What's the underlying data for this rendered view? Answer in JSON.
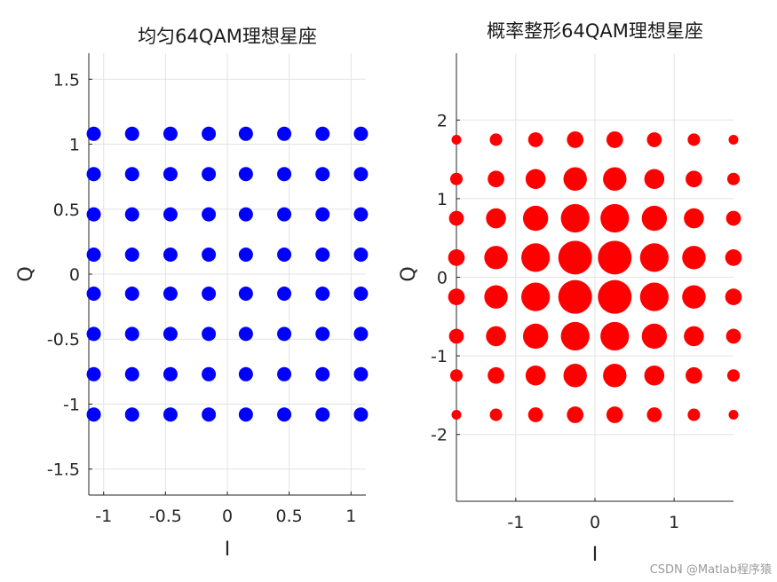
{
  "watermark": "CSDN @Matlab程序猿",
  "chart_data": [
    {
      "type": "scatter",
      "title": "均匀64QAM理想星座",
      "xlabel": "I",
      "ylabel": "Q",
      "xlim": [
        -1.12,
        1.12
      ],
      "ylim": [
        -1.7,
        1.7
      ],
      "xticks": [
        -1,
        -0.5,
        0,
        0.5,
        1
      ],
      "xtick_labels": [
        "-1",
        "-0.5",
        "0",
        "0.5",
        "1"
      ],
      "yticks": [
        -1.5,
        -1,
        -0.5,
        0,
        0.5,
        1,
        1.5
      ],
      "ytick_labels": [
        "-1.5",
        "-1",
        "-0.5",
        "0",
        "0.5",
        "1",
        "1.5"
      ],
      "grid": true,
      "color": "#0000ff",
      "levels": [
        -1.08,
        -0.77,
        -0.46,
        -0.15,
        0.15,
        0.46,
        0.77,
        1.08
      ],
      "point_weights": [
        [
          1,
          1,
          1,
          1,
          1,
          1,
          1,
          1
        ],
        [
          1,
          1,
          1,
          1,
          1,
          1,
          1,
          1
        ],
        [
          1,
          1,
          1,
          1,
          1,
          1,
          1,
          1
        ],
        [
          1,
          1,
          1,
          1,
          1,
          1,
          1,
          1
        ],
        [
          1,
          1,
          1,
          1,
          1,
          1,
          1,
          1
        ],
        [
          1,
          1,
          1,
          1,
          1,
          1,
          1,
          1
        ],
        [
          1,
          1,
          1,
          1,
          1,
          1,
          1,
          1
        ],
        [
          1,
          1,
          1,
          1,
          1,
          1,
          1,
          1
        ]
      ]
    },
    {
      "type": "scatter",
      "title": "概率整形64QAM理想星座",
      "xlabel": "I",
      "ylabel": "Q",
      "xlim": [
        -1.75,
        1.75
      ],
      "ylim": [
        -2.85,
        2.85
      ],
      "xticks": [
        -1,
        0,
        1
      ],
      "xtick_labels": [
        "-1",
        "0",
        "1"
      ],
      "yticks": [
        -2,
        -1,
        0,
        1,
        2
      ],
      "ytick_labels": [
        "-2",
        "-1",
        "0",
        "1",
        "2"
      ],
      "grid": true,
      "color": "#ff0000",
      "levels": [
        -1.75,
        -1.25,
        -0.75,
        -0.25,
        0.25,
        0.75,
        1.25,
        1.75
      ],
      "point_weights": [
        [
          0.3,
          0.38,
          0.45,
          0.5,
          0.5,
          0.45,
          0.38,
          0.3
        ],
        [
          0.38,
          0.5,
          0.6,
          0.7,
          0.7,
          0.6,
          0.5,
          0.38
        ],
        [
          0.45,
          0.6,
          0.75,
          0.85,
          0.85,
          0.75,
          0.6,
          0.45
        ],
        [
          0.5,
          0.7,
          0.85,
          1.0,
          1.0,
          0.85,
          0.7,
          0.5
        ],
        [
          0.5,
          0.7,
          0.85,
          1.0,
          1.0,
          0.85,
          0.7,
          0.5
        ],
        [
          0.45,
          0.6,
          0.75,
          0.85,
          0.85,
          0.75,
          0.6,
          0.45
        ],
        [
          0.38,
          0.5,
          0.6,
          0.7,
          0.7,
          0.6,
          0.5,
          0.38
        ],
        [
          0.3,
          0.38,
          0.45,
          0.5,
          0.5,
          0.45,
          0.38,
          0.3
        ]
      ]
    }
  ]
}
